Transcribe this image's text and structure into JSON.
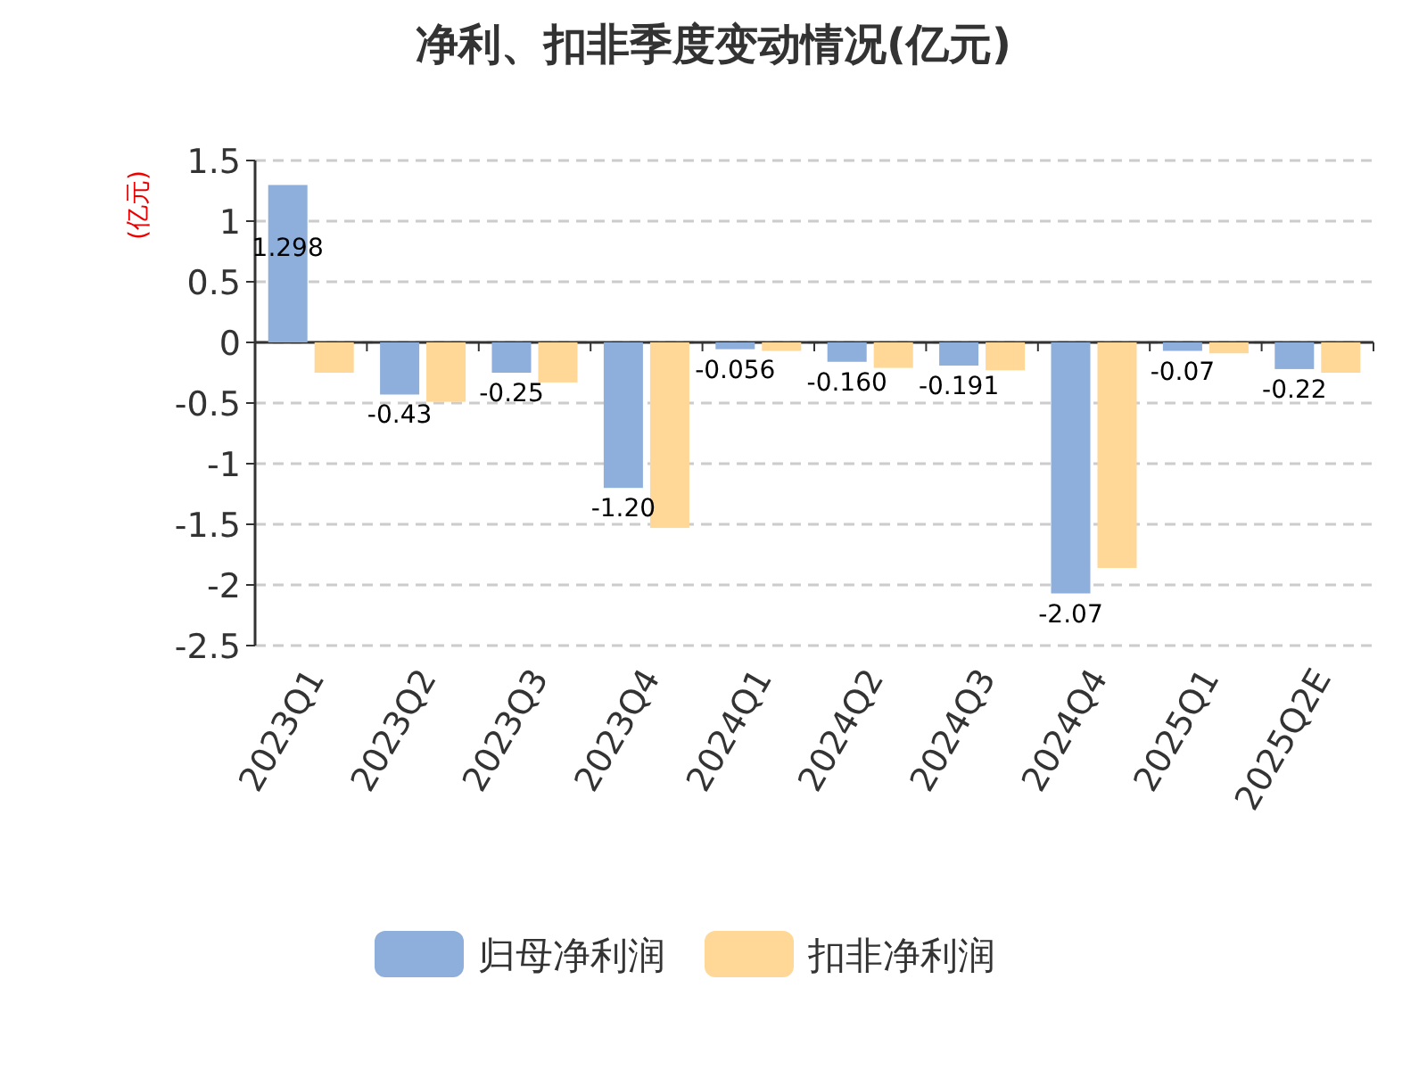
{
  "chart_data": {
    "type": "bar",
    "title": "净利、扣非季度变动情况(亿元)",
    "ylabel": "(亿元)",
    "categories": [
      "2023Q1",
      "2023Q2",
      "2023Q3",
      "2023Q4",
      "2024Q1",
      "2024Q2",
      "2024Q3",
      "2024Q4",
      "2025Q1",
      "2025Q2E"
    ],
    "series": [
      {
        "name": "归母净利润",
        "color": "#8eaedb",
        "values": [
          1.298,
          -0.43,
          -0.25,
          -1.2,
          -0.056,
          -0.16,
          -0.191,
          -2.07,
          -0.07,
          -0.22
        ],
        "value_labels": [
          "1.298",
          "-0.43",
          "-0.25",
          "-1.20",
          "-0.056",
          "-0.160",
          "-0.191",
          "-2.07",
          "-0.07",
          "-0.22"
        ]
      },
      {
        "name": "扣非净利润",
        "color": "#ffd898",
        "values": [
          -0.25,
          -0.49,
          -0.33,
          -1.53,
          -0.07,
          -0.21,
          -0.23,
          -1.86,
          -0.09,
          -0.25
        ]
      }
    ],
    "ylim": [
      -2.5,
      1.5
    ],
    "yticks": [
      -2.5,
      -2,
      -1.5,
      -1,
      -0.5,
      0,
      0.5,
      1,
      1.5
    ],
    "grid": "y",
    "legend": "bottom"
  }
}
